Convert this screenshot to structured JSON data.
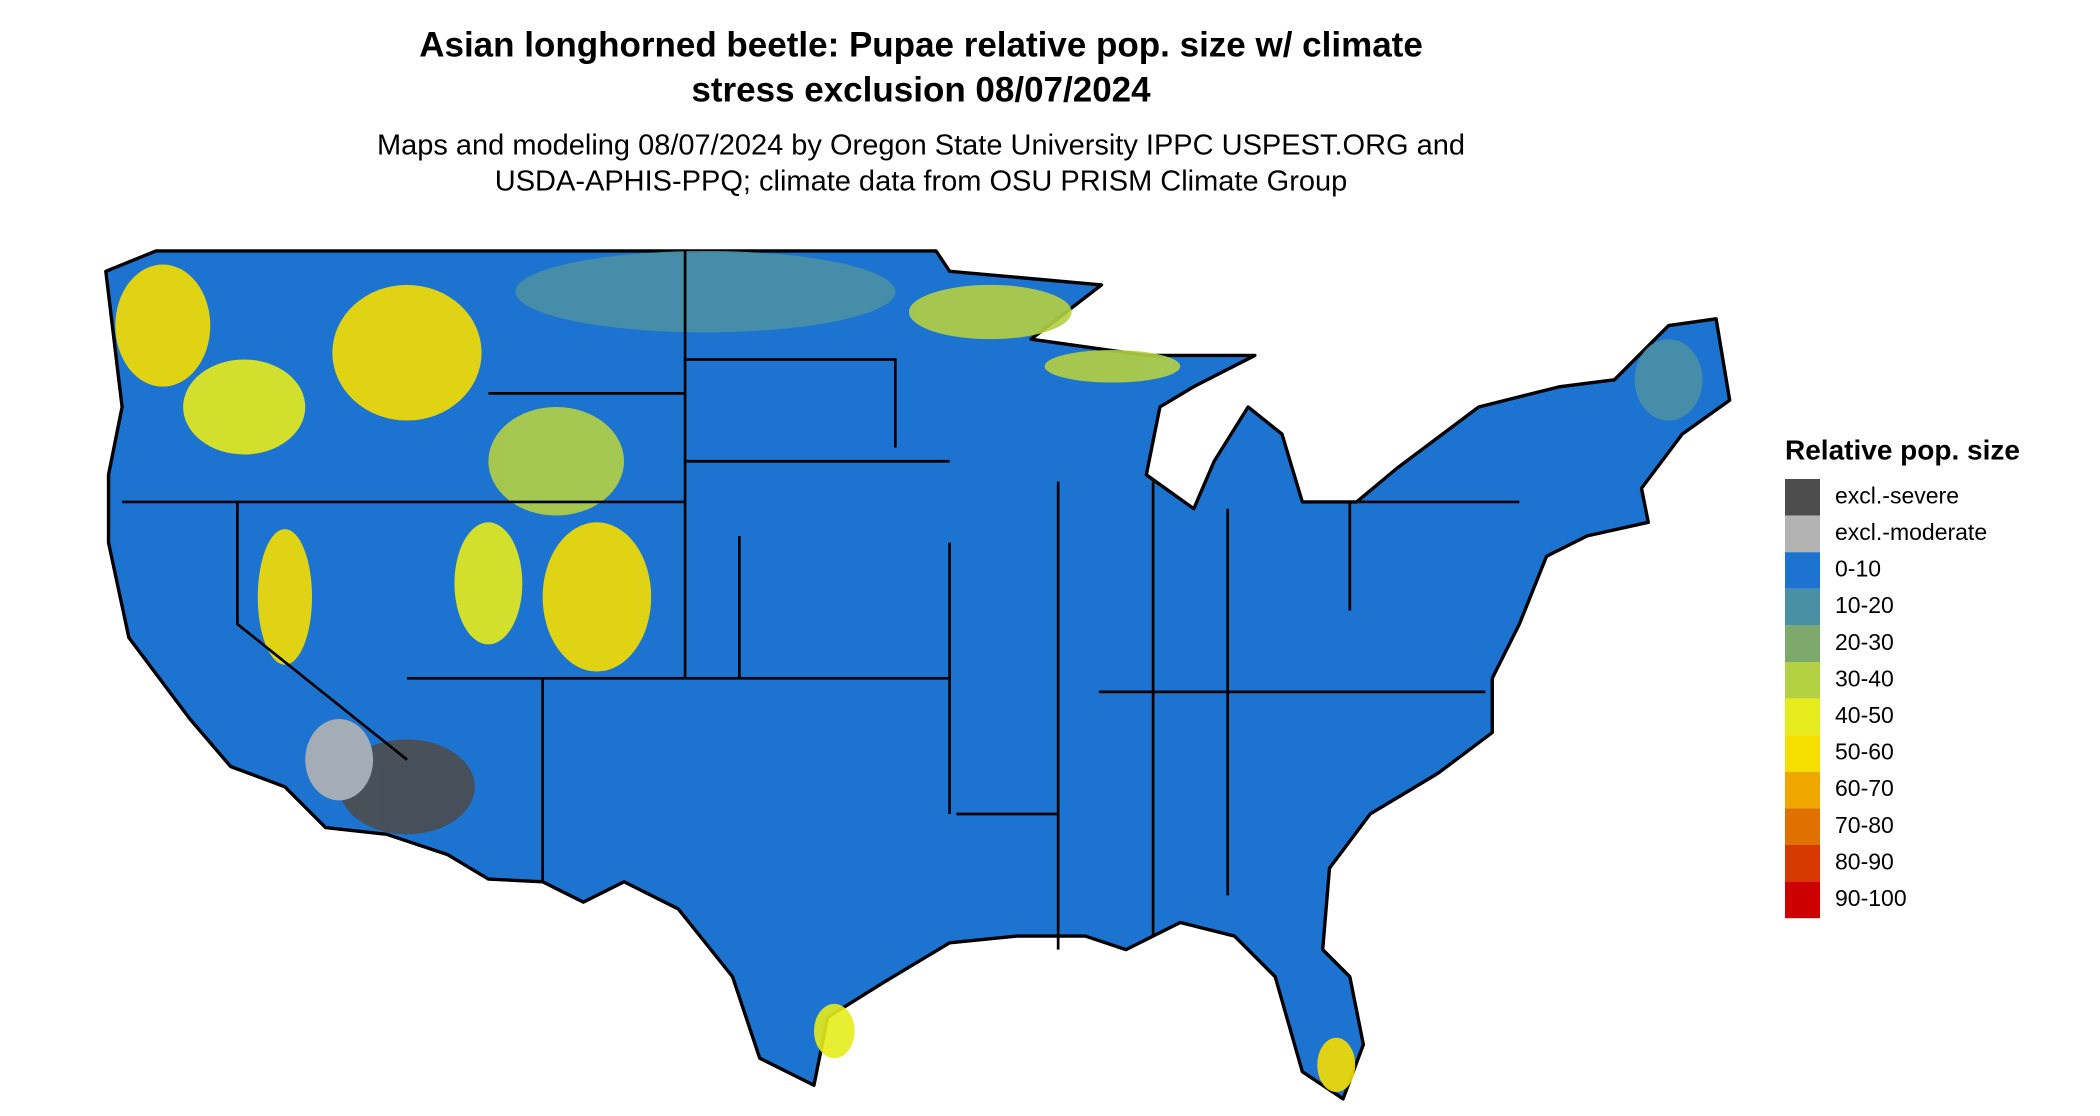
{
  "header": {
    "title": [
      "Asian longhorned beetle: Pupae relative pop. size w/ climate",
      "stress exclusion 08/07/2024"
    ],
    "subtitle": [
      "Maps and modeling 08/07/2024 by Oregon State University IPPC USPEST.ORG and",
      "USDA-APHIS-PPQ; climate data from OSU PRISM Climate Group"
    ]
  },
  "legend": {
    "title": "Relative pop. size",
    "entries": [
      {
        "label": "excl.-severe",
        "color": "#4d4d4d"
      },
      {
        "label": "excl.-moderate",
        "color": "#b3b3b3"
      },
      {
        "label": "0-10",
        "color": "#1c74d0"
      },
      {
        "label": "10-20",
        "color": "#4a90a4"
      },
      {
        "label": "20-30",
        "color": "#7daa6c"
      },
      {
        "label": "30-40",
        "color": "#b4d143"
      },
      {
        "label": "40-50",
        "color": "#e6ec1c"
      },
      {
        "label": "50-60",
        "color": "#f6de00"
      },
      {
        "label": "60-70",
        "color": "#f0a800"
      },
      {
        "label": "70-80",
        "color": "#e07000"
      },
      {
        "label": "80-90",
        "color": "#d63a00"
      },
      {
        "label": "90-100",
        "color": "#cc0000"
      }
    ]
  }
}
